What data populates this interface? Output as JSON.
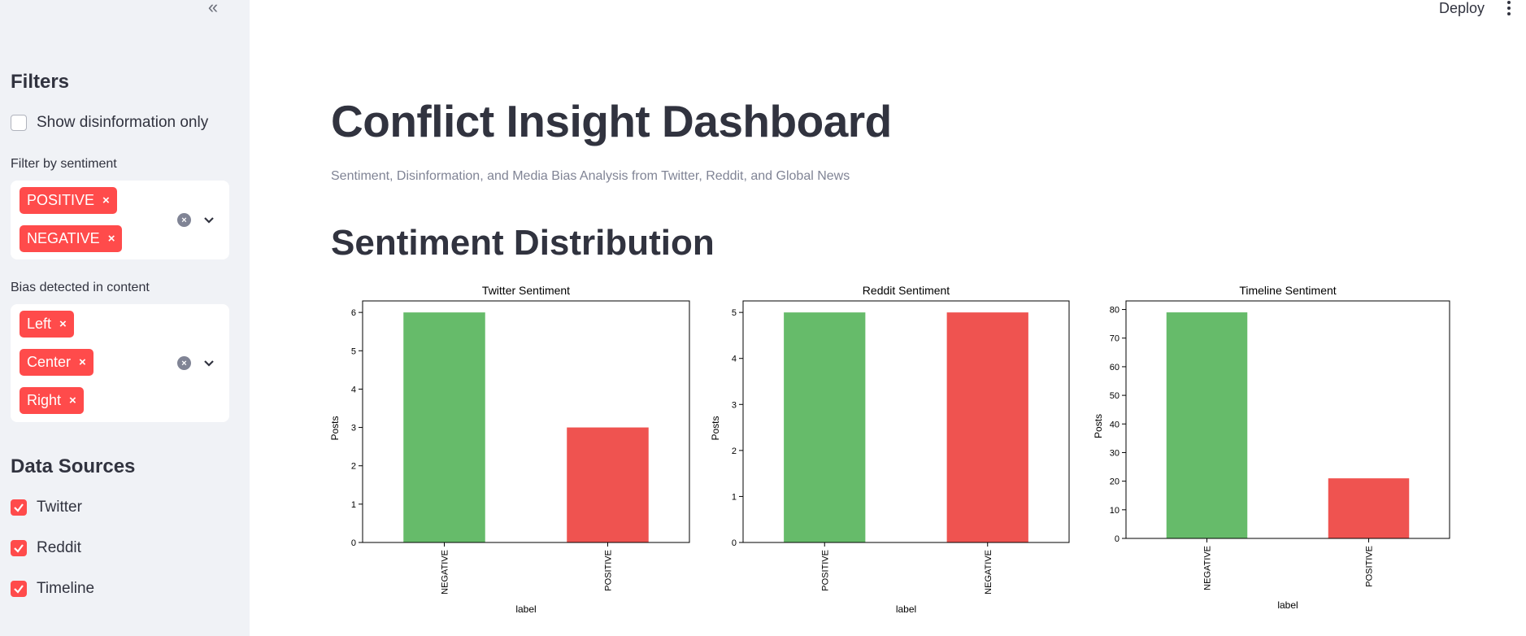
{
  "sidebar": {
    "filters_heading": "Filters",
    "disinfo_label": "Show disinformation only",
    "disinfo_checked": false,
    "sentiment_label": "Filter by sentiment",
    "sentiment_tags": [
      "POSITIVE",
      "NEGATIVE"
    ],
    "bias_label": "Bias detected in content",
    "bias_tags": [
      "Left",
      "Center",
      "Right"
    ],
    "sources_heading": "Data Sources",
    "sources": [
      {
        "label": "Twitter",
        "checked": true
      },
      {
        "label": "Reddit",
        "checked": true
      },
      {
        "label": "Timeline",
        "checked": true
      }
    ],
    "collapse_icon": "double-chevron-left-icon",
    "tag_close_glyph": "×"
  },
  "topbar": {
    "deploy_label": "Deploy"
  },
  "main": {
    "title": "Conflict Insight Dashboard",
    "subtitle": "Sentiment, Disinformation, and Media Bias Analysis from Twitter, Reddit, and Global News",
    "section_title": "Sentiment Distribution"
  },
  "colors": {
    "accent": "#ff4b4b",
    "green_bar": "#66bb6a",
    "red_bar": "#ef5350"
  },
  "chart_data": [
    {
      "type": "bar",
      "title": "Twitter Sentiment",
      "xlabel": "label",
      "ylabel": "Posts",
      "categories": [
        "NEGATIVE",
        "POSITIVE"
      ],
      "values": [
        6,
        3
      ],
      "ylim": [
        0,
        6.3
      ],
      "yticks": [
        0,
        1,
        2,
        3,
        4,
        5,
        6
      ]
    },
    {
      "type": "bar",
      "title": "Reddit Sentiment",
      "xlabel": "label",
      "ylabel": "Posts",
      "categories": [
        "POSITIVE",
        "NEGATIVE"
      ],
      "values": [
        5,
        5
      ],
      "ylim": [
        0,
        5.25
      ],
      "yticks": [
        0,
        1,
        2,
        3,
        4,
        5
      ]
    },
    {
      "type": "bar",
      "title": "Timeline Sentiment",
      "xlabel": "label",
      "ylabel": "Posts",
      "categories": [
        "NEGATIVE",
        "POSITIVE"
      ],
      "values": [
        79,
        21
      ],
      "ylim": [
        0,
        83
      ],
      "yticks": [
        0,
        10,
        20,
        30,
        40,
        50,
        60,
        70,
        80
      ]
    }
  ]
}
